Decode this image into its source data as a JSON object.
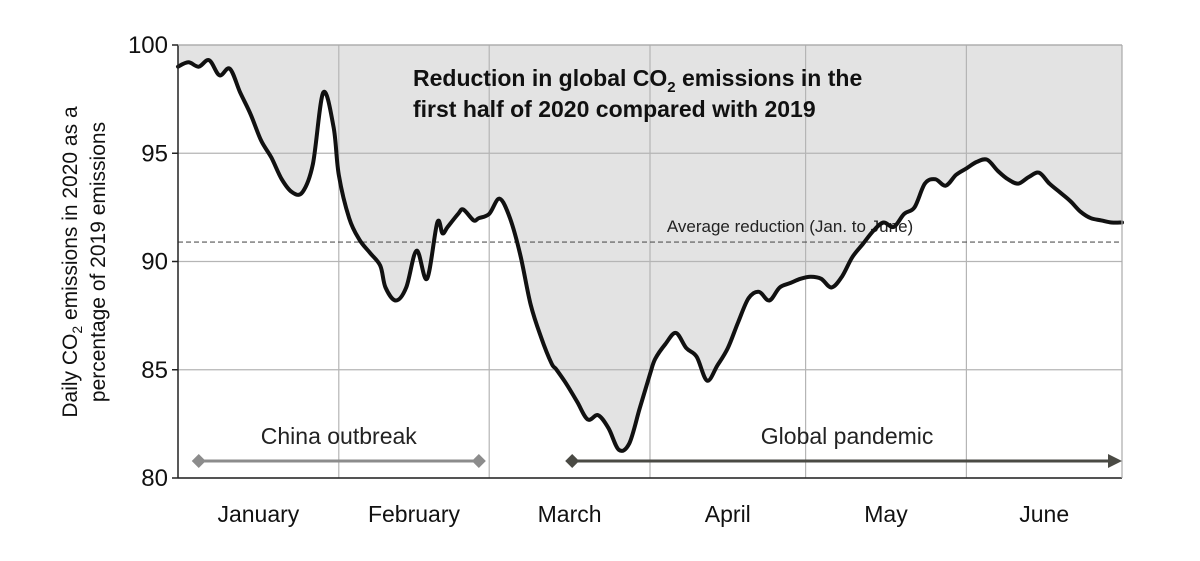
{
  "chart_data": {
    "type": "area",
    "title": {
      "line1_main": "Reduction in global CO",
      "line1_sub": "2",
      "line1_tail": " emissions in the",
      "line2": "first half of 2020 compared with 2019"
    },
    "ylabel": {
      "line1_main": "Daily CO",
      "line1_sub": "2",
      "line1_tail": " emissions in 2020 as a",
      "line2": "percentage of 2019 emissions"
    },
    "ylim": [
      80,
      100
    ],
    "yticks": [
      "80",
      "85",
      "90",
      "95",
      "100"
    ],
    "xlim": [
      0,
      182
    ],
    "months": [
      "January",
      "February",
      "March",
      "April",
      "May",
      "June"
    ],
    "month_starts": [
      0,
      31,
      60,
      91,
      121,
      152
    ],
    "grid": true,
    "baseline": 100,
    "average_reduction": {
      "value": 90.9,
      "label": "Average reduction (Jan. to June)"
    },
    "periods": [
      {
        "label": "China outbreak",
        "start": 4,
        "end": 58,
        "color": "#8c8c8c",
        "arrow_end": false
      },
      {
        "label": "Global pandemic",
        "start": 76,
        "end": 182,
        "color": "#4a4a44",
        "arrow_end": true
      }
    ],
    "series": [
      {
        "x": [
          0,
          2,
          4,
          6,
          8,
          10,
          12,
          14,
          16,
          18,
          20,
          22,
          24,
          26,
          28,
          30,
          31,
          33,
          35,
          37,
          39,
          40,
          42,
          44,
          46,
          48,
          50,
          51,
          52,
          54,
          55,
          57,
          58,
          60,
          62,
          64,
          66,
          68,
          70,
          72,
          73,
          75,
          77,
          79,
          81,
          83,
          85,
          87,
          89,
          91,
          92,
          94,
          96,
          98,
          100,
          102,
          104,
          106,
          108,
          110,
          112,
          114,
          116,
          118,
          120,
          122,
          124,
          126,
          128,
          130,
          132,
          134,
          136,
          138,
          140,
          142,
          144,
          146,
          148,
          150,
          152,
          154,
          156,
          158,
          160,
          162,
          164,
          166,
          168,
          170,
          172,
          174,
          176,
          178,
          180,
          182
        ],
        "values": [
          99.0,
          99.2,
          99.0,
          99.3,
          98.6,
          98.9,
          97.8,
          96.8,
          95.6,
          94.8,
          93.8,
          93.2,
          93.2,
          94.5,
          97.8,
          96.2,
          94.0,
          92.0,
          91.0,
          90.4,
          89.8,
          88.8,
          88.2,
          88.8,
          90.5,
          89.2,
          91.8,
          91.3,
          91.6,
          92.2,
          92.4,
          91.9,
          92.0,
          92.2,
          92.9,
          92.0,
          90.3,
          88.0,
          86.5,
          85.3,
          85.0,
          84.3,
          83.5,
          82.7,
          82.9,
          82.3,
          81.3,
          81.6,
          83.2,
          84.8,
          85.5,
          86.2,
          86.7,
          86.0,
          85.6,
          84.5,
          85.2,
          86.0,
          87.2,
          88.3,
          88.6,
          88.2,
          88.8,
          89.0,
          89.2,
          89.3,
          89.2,
          88.8,
          89.3,
          90.2,
          90.8,
          91.4,
          91.8,
          91.6,
          92.2,
          92.5,
          93.6,
          93.8,
          93.5,
          94.0,
          94.3,
          94.6,
          94.7,
          94.2,
          93.8,
          93.6,
          93.9,
          94.1,
          93.6,
          93.2,
          92.8,
          92.3,
          92.0,
          91.9,
          91.8,
          91.8
        ]
      }
    ]
  }
}
